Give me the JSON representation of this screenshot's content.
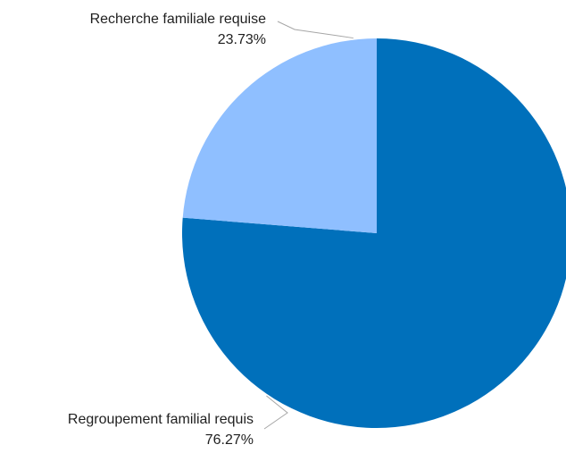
{
  "chart_data": {
    "type": "pie",
    "slices": [
      {
        "label": "Regroupement familial requis",
        "value": 76.27,
        "value_label": "76.27%",
        "color": "#0070bb"
      },
      {
        "label": "Recherche familiale requise",
        "value": 23.73,
        "value_label": "23.73%",
        "color": "#8fbfff"
      }
    ],
    "start": "top",
    "direction": "clockwise",
    "legend": "none"
  }
}
